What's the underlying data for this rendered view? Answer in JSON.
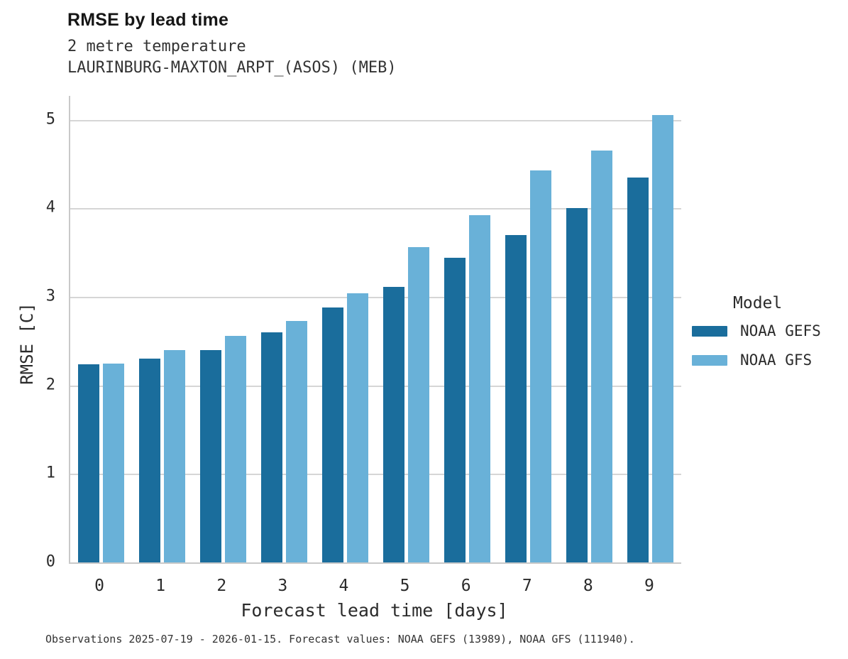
{
  "title": "RMSE by lead time",
  "subtitle_line1": "2 metre temperature",
  "subtitle_line2": "LAURINBURG-MAXTON_ARPT_(ASOS) (MEB)",
  "footer": "Observations 2025-07-19 - 2026-01-15. Forecast values: NOAA GEFS (13989), NOAA GFS (111940).",
  "legend": {
    "title": "Model",
    "entries": [
      {
        "label": "NOAA GEFS",
        "color": "#1a6d9c"
      },
      {
        "label": "NOAA GFS",
        "color": "#69b1d8"
      }
    ]
  },
  "colors": {
    "series_dark": "#1a6d9c",
    "series_light": "#69b1d8",
    "gridline": "#d6d6d6",
    "axis_spine": "#c9c9c9",
    "text": "#2b2b2b"
  },
  "chart_data": {
    "type": "bar",
    "title": "RMSE by lead time",
    "subtitle": [
      "2 metre temperature",
      "LAURINBURG-MAXTON_ARPT_(ASOS) (MEB)"
    ],
    "xlabel": "Forecast lead time [days]",
    "ylabel": "RMSE [C]",
    "categories": [
      0,
      1,
      2,
      3,
      4,
      5,
      6,
      7,
      8,
      9
    ],
    "series": [
      {
        "name": "NOAA GEFS",
        "color": "#1a6d9c",
        "values": [
          2.24,
          2.3,
          2.4,
          2.6,
          2.88,
          3.11,
          3.44,
          3.7,
          4.0,
          4.35
        ]
      },
      {
        "name": "NOAA GFS",
        "color": "#69b1d8",
        "values": [
          2.25,
          2.4,
          2.56,
          2.73,
          3.04,
          3.56,
          3.92,
          4.43,
          4.65,
          5.05
        ]
      }
    ],
    "ylim": [
      0,
      5.27
    ],
    "yticks": [
      0,
      1,
      2,
      3,
      4,
      5
    ],
    "grid": true,
    "legend_position": "right",
    "annotation": "Observations 2025-07-19 - 2026-01-15. Forecast values: NOAA GEFS (13989), NOAA GFS (111940)."
  }
}
